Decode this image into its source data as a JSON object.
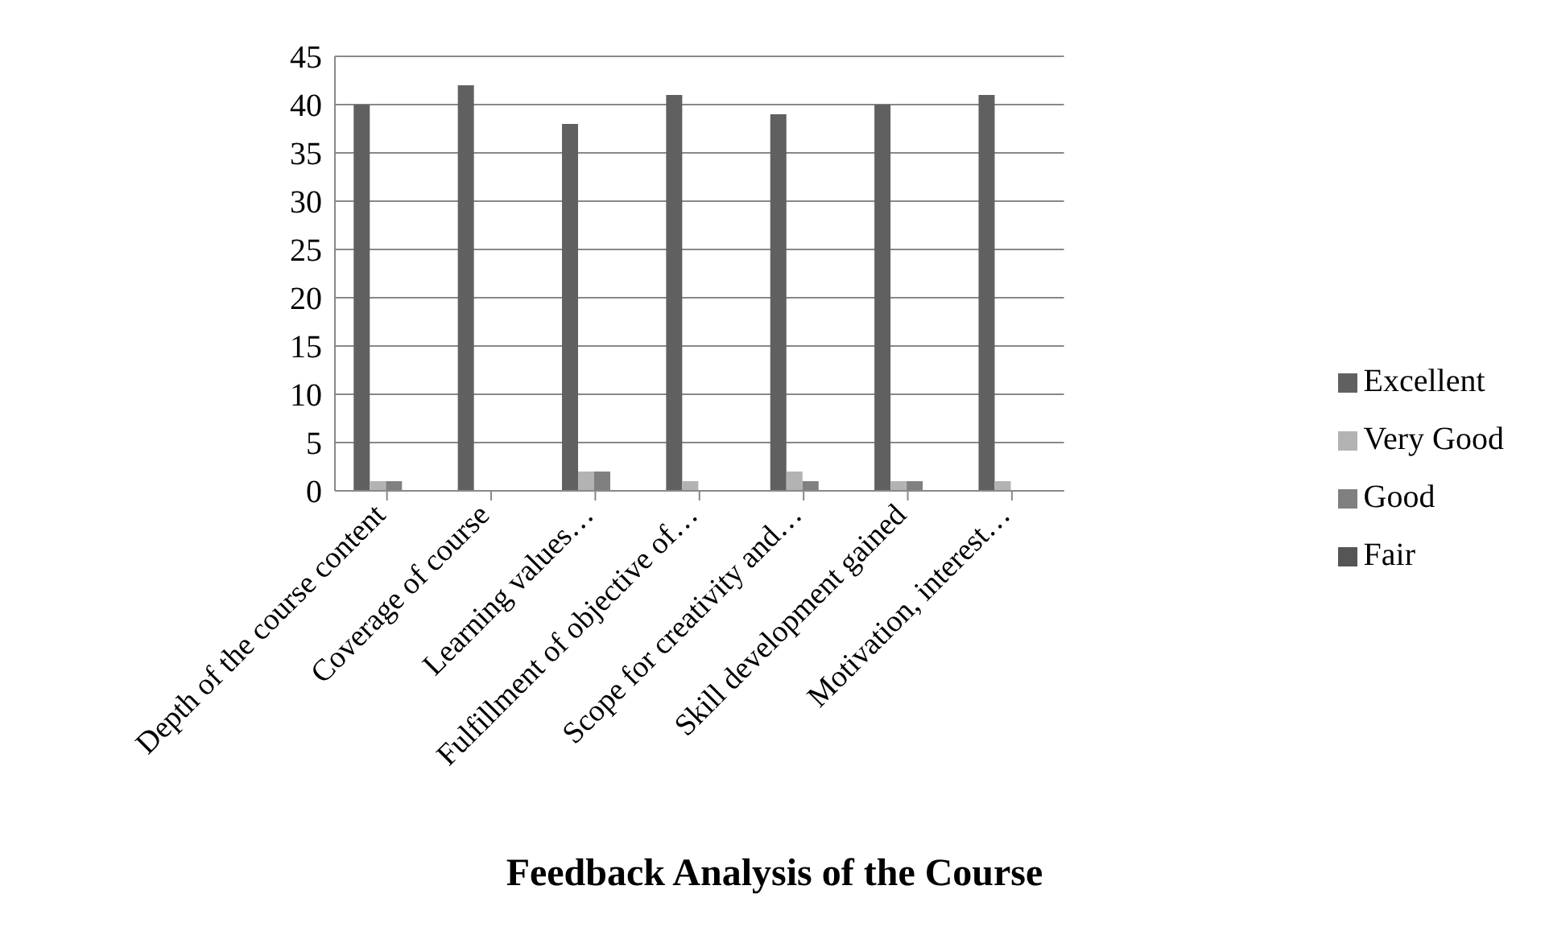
{
  "chart_data": {
    "type": "bar",
    "title": "Feedback Analysis of the Course",
    "categories": [
      "Depth of the course content",
      "Coverage of course",
      "Learning values…",
      "Fulfillment of objective of…",
      "Scope for creativity and…",
      "Skill development gained",
      "Motivation, interest…"
    ],
    "series": [
      {
        "name": "Excellent",
        "color": "#606060",
        "values": [
          40,
          42,
          38,
          41,
          39,
          40,
          41
        ]
      },
      {
        "name": "Very Good",
        "color": "#b3b3b3",
        "values": [
          1,
          0,
          2,
          1,
          2,
          1,
          1
        ]
      },
      {
        "name": "Good",
        "color": "#808080",
        "values": [
          1,
          0,
          2,
          0,
          1,
          1,
          0
        ]
      },
      {
        "name": "Fair",
        "color": "#555555",
        "values": [
          0,
          0,
          0,
          0,
          0,
          0,
          0
        ]
      }
    ],
    "ylim": [
      0,
      45
    ],
    "yticks": [
      0,
      5,
      10,
      15,
      20,
      25,
      30,
      35,
      40,
      45
    ],
    "grid": "y",
    "legend": "right"
  }
}
